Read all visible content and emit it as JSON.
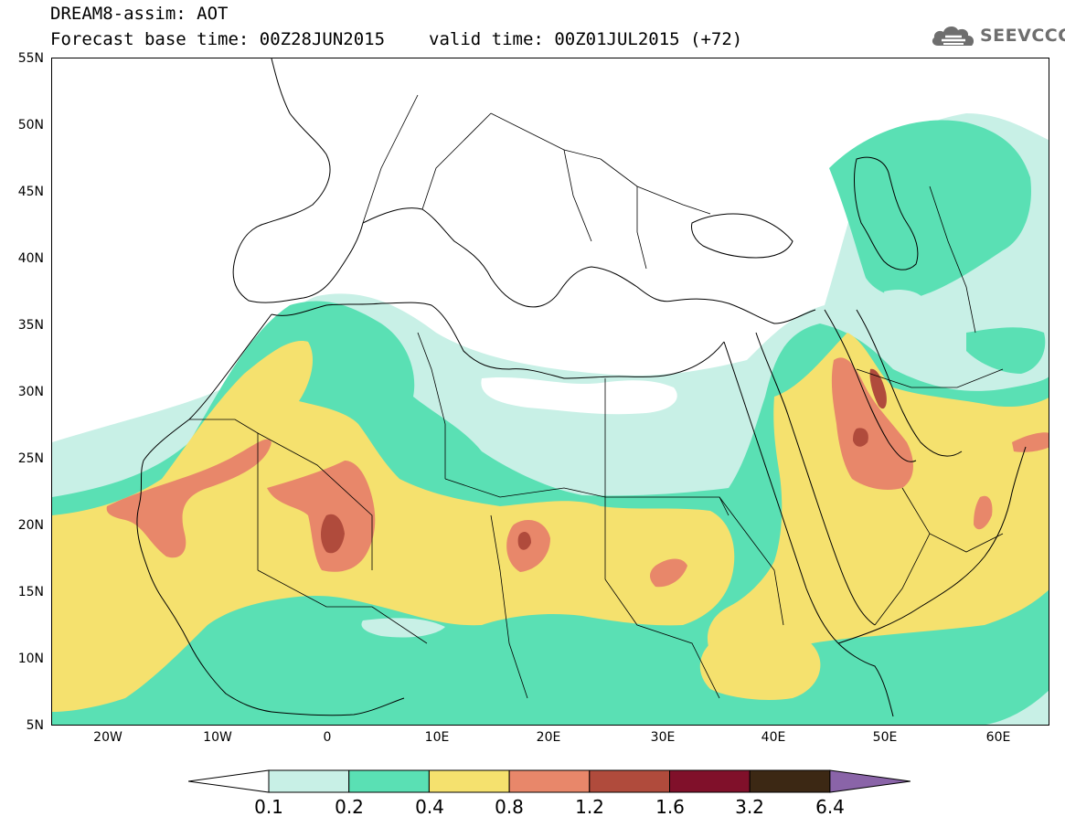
{
  "header": {
    "title": "DREAM8-assim: AOT",
    "base_time": "Forecast base time: 00Z28JUN2015",
    "valid_time": "valid time: 00Z01JUL2015 (+72)"
  },
  "logo": {
    "text": "SEEVCCC",
    "icon": "cloud-icon",
    "color": "#6e6e6e"
  },
  "map": {
    "lat_labels": [
      "55N",
      "50N",
      "45N",
      "40N",
      "35N",
      "30N",
      "25N",
      "20N",
      "15N",
      "10N",
      "5N"
    ],
    "lon_labels": [
      "20W",
      "10W",
      "0",
      "10E",
      "20E",
      "30E",
      "40E",
      "50E",
      "60E"
    ],
    "lat_range": [
      5,
      55
    ],
    "lon_range": [
      -25,
      65
    ]
  },
  "colorbar": {
    "labels": [
      "0.1",
      "0.2",
      "0.4",
      "0.8",
      "1.2",
      "1.6",
      "3.2",
      "6.4"
    ],
    "colors": [
      "#ffffff",
      "#c8f0e6",
      "#5ae0b4",
      "#f5e16e",
      "#e8876a",
      "#b04b3c",
      "#80102a",
      "#3c2814",
      "#8a64a8"
    ]
  }
}
